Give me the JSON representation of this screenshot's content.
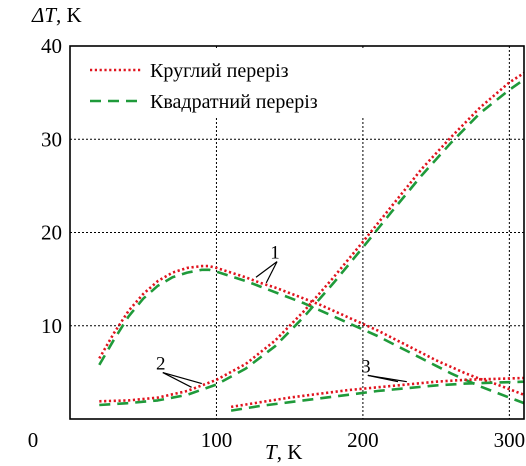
{
  "chart_data": {
    "type": "line",
    "ylabel_symbol": "ΔT",
    "ylabel_unit": ", K",
    "xlabel_symbol": "T",
    "xlabel_unit": ", K",
    "xlim": [
      0,
      310
    ],
    "ylim": [
      0,
      40
    ],
    "x_ticks": [
      0,
      100,
      200,
      300
    ],
    "y_ticks": [
      10,
      20,
      30,
      40
    ],
    "x_tick_labels": [
      "0",
      "100",
      "200",
      "300"
    ],
    "y_tick_labels": [
      "10",
      "20",
      "30",
      "40"
    ],
    "grid": true,
    "legend": {
      "placement": "top-left",
      "entries": [
        {
          "label": "Круглий переріз",
          "color": "#e0141e",
          "style": "dotted"
        },
        {
          "label": "Квадратний переріз",
          "color": "#1f9a3a",
          "style": "dashed"
        }
      ]
    },
    "annotations": [
      {
        "text": "1",
        "x": 140,
        "y": 17.2,
        "arrow_to": [
          [
            127,
            15.2
          ],
          [
            134,
            14.6
          ]
        ]
      },
      {
        "text": "2",
        "x": 62,
        "y": 5.3,
        "arrow_to": [
          [
            83,
            3.4
          ],
          [
            90,
            3.8
          ]
        ]
      },
      {
        "text": "3",
        "x": 202,
        "y": 5.0,
        "arrow_to": [
          [
            224,
            4.0
          ],
          [
            230,
            4.0
          ]
        ]
      }
    ],
    "series": [
      {
        "name": "Круглий переріз",
        "group": "1",
        "color": "#e0141e",
        "style": "dotted",
        "x": [
          20,
          30,
          40,
          50,
          60,
          70,
          80,
          90,
          95,
          100,
          110,
          120,
          130,
          140,
          150,
          160,
          170,
          180,
          190,
          200,
          210,
          220,
          230,
          240,
          250,
          260,
          270,
          280,
          290,
          300,
          310
        ],
        "y": [
          6.5,
          9.2,
          11.6,
          13.4,
          14.8,
          15.7,
          16.2,
          16.4,
          16.4,
          16.2,
          15.7,
          15.2,
          14.6,
          14.1,
          13.5,
          12.9,
          12.3,
          11.6,
          10.9,
          10.2,
          9.5,
          8.7,
          7.9,
          7.1,
          6.3,
          5.6,
          4.9,
          4.3,
          3.8,
          3.2,
          2.6
        ]
      },
      {
        "name": "Квадратний переріз",
        "group": "1",
        "color": "#1f9a3a",
        "style": "dashed",
        "x": [
          20,
          30,
          40,
          50,
          60,
          70,
          80,
          90,
          95,
          100,
          110,
          120,
          130,
          140,
          150,
          160,
          170,
          180,
          190,
          200,
          210,
          220,
          230,
          240,
          250,
          260,
          270,
          280,
          290,
          300,
          310
        ],
        "y": [
          5.8,
          8.5,
          11.0,
          12.9,
          14.3,
          15.2,
          15.7,
          16.0,
          16.0,
          15.8,
          15.3,
          14.8,
          14.2,
          13.6,
          13.0,
          12.4,
          11.7,
          11.0,
          10.3,
          9.6,
          8.9,
          8.1,
          7.3,
          6.5,
          5.7,
          4.9,
          4.2,
          3.5,
          2.9,
          2.3,
          1.7
        ]
      },
      {
        "name": "Круглий переріз",
        "group": "2",
        "color": "#e0141e",
        "style": "dotted",
        "x": [
          20,
          40,
          60,
          80,
          100,
          120,
          140,
          160,
          180,
          200,
          220,
          240,
          260,
          280,
          300,
          310
        ],
        "y": [
          1.9,
          2.0,
          2.3,
          3.0,
          4.2,
          5.9,
          8.4,
          11.6,
          15.2,
          19.0,
          22.9,
          26.8,
          30.2,
          33.4,
          36.1,
          37.1
        ]
      },
      {
        "name": "Квадратний переріз",
        "group": "2",
        "color": "#1f9a3a",
        "style": "dashed",
        "x": [
          20,
          40,
          60,
          80,
          100,
          120,
          140,
          160,
          180,
          200,
          220,
          240,
          260,
          280,
          300,
          310
        ],
        "y": [
          1.5,
          1.7,
          2.0,
          2.6,
          3.7,
          5.4,
          7.8,
          11.0,
          14.6,
          18.4,
          22.3,
          26.1,
          29.6,
          32.8,
          35.3,
          36.4
        ]
      },
      {
        "name": "Круглий переріз",
        "group": "3",
        "color": "#e0141e",
        "style": "dotted",
        "x": [
          110,
          130,
          150,
          170,
          190,
          210,
          230,
          250,
          270,
          290,
          310
        ],
        "y": [
          1.3,
          1.8,
          2.3,
          2.7,
          3.1,
          3.4,
          3.7,
          4.0,
          4.2,
          4.3,
          4.4
        ]
      },
      {
        "name": "Квадратний переріз",
        "group": "3",
        "color": "#1f9a3a",
        "style": "dashed",
        "x": [
          110,
          130,
          150,
          170,
          190,
          210,
          230,
          250,
          270,
          290,
          310
        ],
        "y": [
          0.9,
          1.4,
          1.8,
          2.2,
          2.6,
          3.0,
          3.3,
          3.6,
          3.8,
          3.9,
          4.0
        ]
      }
    ]
  }
}
